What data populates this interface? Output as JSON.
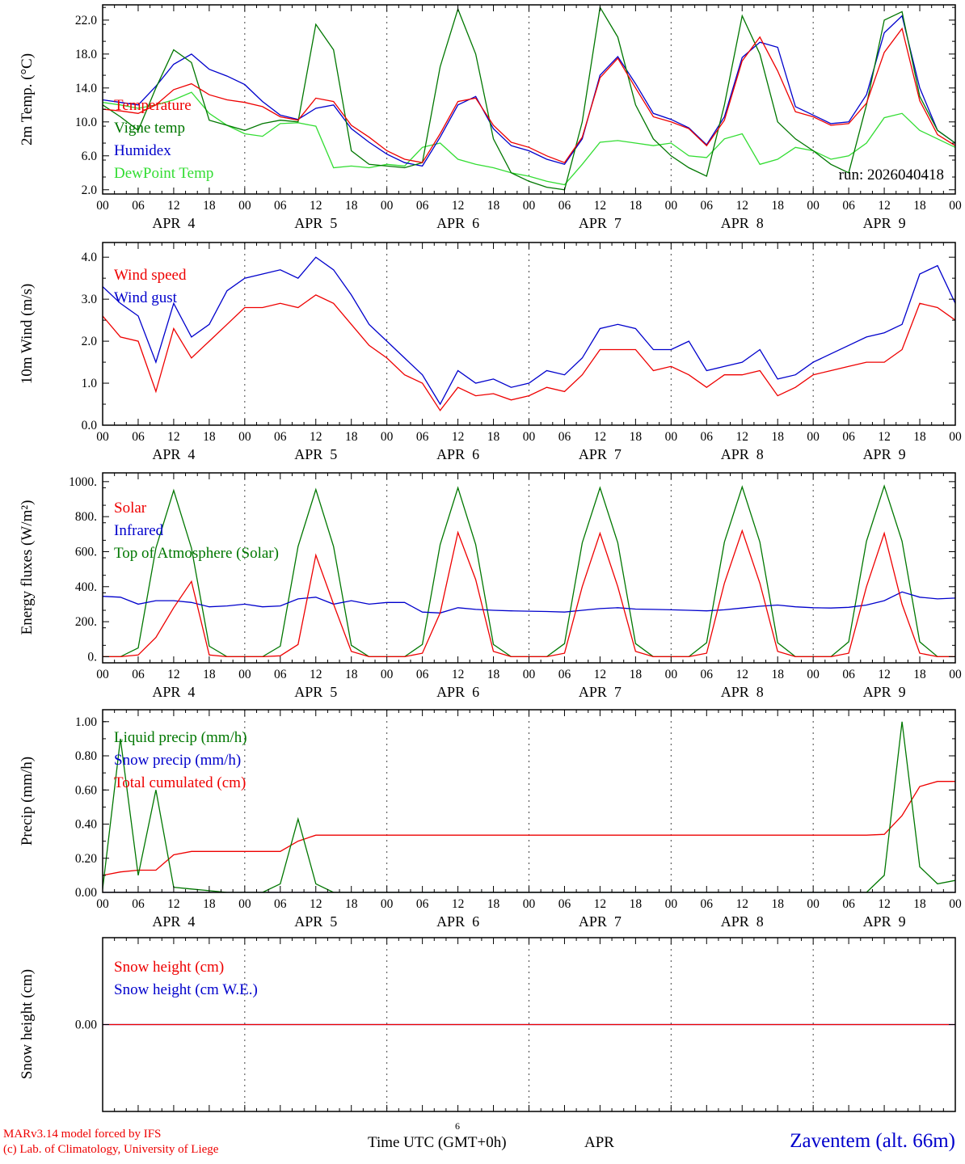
{
  "run_label": "run: 2026040418",
  "footer": {
    "left_line1": "MARv3.14 model forced by IFS",
    "left_line2": "(c) Lab. of Climatology, University of Liege",
    "center": "Time UTC (GMT+0h)",
    "center_sup": "6",
    "apr": "APR",
    "right": "Zaventem (alt. 66m)"
  },
  "colors": {
    "red": "#ee0000",
    "blue": "#0000cc",
    "dark_green": "#007700",
    "light_green": "#33dd33",
    "axis": "#000000"
  },
  "x_axis": {
    "hours_start": 0,
    "hours_end": 144,
    "major_step": 6,
    "minor_step": 2,
    "tick_label_cycle": [
      "00",
      "06",
      "12",
      "18"
    ],
    "day_labels": [
      "APR  4",
      "APR  5",
      "APR  6",
      "APR  7",
      "APR  8",
      "APR  9"
    ],
    "day_boundaries": [
      24,
      48,
      72,
      96,
      120
    ]
  },
  "chart_data": [
    {
      "type": "line",
      "ylabel": "2m Temp. (°C)",
      "ylim": [
        1.5,
        23.8
      ],
      "yticks": [
        2,
        6,
        10,
        14,
        18,
        22
      ],
      "ytick_labels": [
        "2.0",
        "6.0",
        "10.0",
        "14.0",
        "18.0",
        "22.0"
      ],
      "x_step_hours": 3,
      "series": [
        {
          "name": "Temperature",
          "color": "#ee0000",
          "values": [
            11.5,
            11.3,
            11.0,
            12.0,
            13.8,
            14.5,
            13.2,
            12.6,
            12.3,
            11.8,
            10.6,
            10.2,
            12.8,
            12.4,
            9.6,
            8.2,
            6.6,
            5.6,
            5.2,
            8.6,
            12.4,
            12.8,
            9.6,
            7.6,
            7.0,
            6.0,
            5.2,
            8.2,
            15.2,
            17.5,
            14.0,
            10.6,
            10.0,
            9.2,
            7.2,
            10.2,
            17.2,
            20.0,
            16.0,
            11.2,
            10.6,
            9.6,
            9.8,
            12.2,
            18.2,
            21.0,
            12.5,
            8.5,
            7.2
          ]
        },
        {
          "name": "Vigne temp",
          "color": "#007700",
          "values": [
            12.0,
            10.6,
            9.0,
            14.0,
            18.5,
            17.0,
            10.2,
            9.6,
            9.0,
            9.8,
            10.2,
            10.0,
            21.5,
            18.5,
            6.6,
            5.0,
            4.8,
            4.6,
            5.2,
            16.5,
            23.3,
            18.0,
            8.0,
            4.0,
            3.0,
            2.3,
            2.0,
            10.0,
            23.5,
            20.0,
            12.0,
            8.0,
            6.0,
            4.6,
            3.6,
            12.0,
            22.5,
            18.0,
            10.0,
            8.0,
            6.6,
            5.0,
            4.0,
            12.0,
            22.0,
            23.0,
            13.0,
            9.0,
            7.5
          ]
        },
        {
          "name": "Humidex",
          "color": "#0000cc",
          "values": [
            12.6,
            12.3,
            12.0,
            14.2,
            16.8,
            18.0,
            16.2,
            15.4,
            14.4,
            12.4,
            10.8,
            10.3,
            11.6,
            12.0,
            9.2,
            7.6,
            6.2,
            5.2,
            4.8,
            8.2,
            12.0,
            13.0,
            9.2,
            7.2,
            6.6,
            5.6,
            5.0,
            8.0,
            15.5,
            17.7,
            14.5,
            11.0,
            10.3,
            9.3,
            7.3,
            10.6,
            17.6,
            19.4,
            18.8,
            11.8,
            10.8,
            9.8,
            10.0,
            13.2,
            20.5,
            22.5,
            14.0,
            9.0,
            7.5
          ]
        },
        {
          "name": "DewPoint Temp",
          "color": "#33dd33",
          "values": [
            12.3,
            12.0,
            11.6,
            12.0,
            12.6,
            13.5,
            11.0,
            9.6,
            8.6,
            8.3,
            9.8,
            9.9,
            9.5,
            4.6,
            4.8,
            4.6,
            5.0,
            4.8,
            7.0,
            7.5,
            5.6,
            5.0,
            4.6,
            4.0,
            3.6,
            3.0,
            2.6,
            5.0,
            7.6,
            7.8,
            7.5,
            7.2,
            7.5,
            6.0,
            5.8,
            8.0,
            8.6,
            5.0,
            5.6,
            7.0,
            6.6,
            5.6,
            6.0,
            7.5,
            10.5,
            11.0,
            9.0,
            8.0,
            7.0
          ]
        }
      ]
    },
    {
      "type": "line",
      "ylabel": "10m Wind (m/s)",
      "ylim": [
        0,
        4.35
      ],
      "yticks": [
        0,
        1,
        2,
        3,
        4
      ],
      "ytick_labels": [
        "0.0",
        "1.0",
        "2.0",
        "3.0",
        "4.0"
      ],
      "x_step_hours": 3,
      "series": [
        {
          "name": "Wind speed",
          "color": "#ee0000",
          "values": [
            2.6,
            2.1,
            2.0,
            0.8,
            2.3,
            1.6,
            2.0,
            2.4,
            2.8,
            2.8,
            2.9,
            2.8,
            3.1,
            2.9,
            2.4,
            1.9,
            1.6,
            1.2,
            1.0,
            0.35,
            0.9,
            0.7,
            0.75,
            0.6,
            0.7,
            0.9,
            0.8,
            1.2,
            1.8,
            1.8,
            1.8,
            1.3,
            1.4,
            1.2,
            0.9,
            1.2,
            1.2,
            1.3,
            0.7,
            0.9,
            1.2,
            1.3,
            1.4,
            1.5,
            1.5,
            1.8,
            2.9,
            2.8,
            2.5
          ]
        },
        {
          "name": "Wind gust",
          "color": "#0000cc",
          "values": [
            3.3,
            2.9,
            2.6,
            1.5,
            2.9,
            2.1,
            2.4,
            3.2,
            3.5,
            3.6,
            3.7,
            3.5,
            4.0,
            3.7,
            3.1,
            2.4,
            2.0,
            1.6,
            1.2,
            0.5,
            1.3,
            1.0,
            1.1,
            0.9,
            1.0,
            1.3,
            1.2,
            1.6,
            2.3,
            2.4,
            2.3,
            1.8,
            1.8,
            2.0,
            1.3,
            1.4,
            1.5,
            1.8,
            1.1,
            1.2,
            1.5,
            1.7,
            1.9,
            2.1,
            2.2,
            2.4,
            3.6,
            3.8,
            2.9
          ]
        }
      ]
    },
    {
      "type": "line",
      "ylabel": "Energy fluxes (W/m²)",
      "ylim": [
        -35,
        1050
      ],
      "yticks": [
        0,
        200,
        400,
        600,
        800,
        1000
      ],
      "ytick_labels": [
        "0.",
        "200.",
        "400.",
        "600.",
        "800.",
        "1000."
      ],
      "x_step_hours": 3,
      "series": [
        {
          "name": "Solar",
          "color": "#ee0000",
          "values": [
            0,
            0,
            10,
            110,
            280,
            430,
            10,
            0,
            0,
            0,
            5,
            70,
            580,
            300,
            30,
            0,
            0,
            0,
            20,
            250,
            710,
            440,
            30,
            0,
            0,
            0,
            20,
            400,
            705,
            400,
            30,
            0,
            0,
            0,
            20,
            420,
            720,
            420,
            30,
            0,
            0,
            0,
            20,
            400,
            705,
            300,
            20,
            0,
            0
          ]
        },
        {
          "name": "Infrared",
          "color": "#0000cc",
          "values": [
            345,
            340,
            300,
            320,
            320,
            310,
            285,
            290,
            300,
            285,
            290,
            330,
            340,
            300,
            320,
            300,
            310,
            310,
            255,
            250,
            280,
            270,
            265,
            262,
            260,
            258,
            255,
            265,
            275,
            280,
            272,
            270,
            268,
            265,
            262,
            268,
            278,
            288,
            295,
            285,
            280,
            278,
            282,
            295,
            320,
            370,
            340,
            330,
            335
          ]
        },
        {
          "name": "Top of Atmosphere (Solar)",
          "color": "#007700",
          "values": [
            0,
            0,
            50,
            620,
            950,
            620,
            60,
            0,
            0,
            0,
            60,
            630,
            955,
            630,
            65,
            0,
            0,
            0,
            70,
            640,
            965,
            640,
            70,
            0,
            0,
            0,
            75,
            650,
            965,
            650,
            75,
            0,
            0,
            0,
            80,
            655,
            970,
            655,
            80,
            0,
            0,
            0,
            85,
            660,
            975,
            660,
            85,
            0,
            0
          ]
        }
      ]
    },
    {
      "type": "line",
      "ylabel": "Precip (mm/h)",
      "ylim": [
        0,
        1.07
      ],
      "yticks": [
        0,
        0.2,
        0.4,
        0.6,
        0.8,
        1.0
      ],
      "ytick_labels": [
        "0.00",
        "0.20",
        "0.40",
        "0.60",
        "0.80",
        "1.00"
      ],
      "x_step_hours": 3,
      "series": [
        {
          "name": "Liquid precip (mm/h)",
          "color": "#007700",
          "values": [
            0.02,
            0.9,
            0.1,
            0.6,
            0.03,
            0.02,
            0.01,
            0,
            0,
            0,
            0.05,
            0.43,
            0.05,
            0,
            0,
            0,
            0,
            0,
            0,
            0,
            0,
            0,
            0,
            0,
            0,
            0,
            0,
            0,
            0,
            0,
            0,
            0,
            0,
            0,
            0,
            0,
            0,
            0,
            0,
            0,
            0,
            0,
            0,
            0,
            0.1,
            1.0,
            0.15,
            0.05,
            0.07
          ]
        },
        {
          "name": "Snow precip (mm/h)",
          "color": "#0000cc",
          "values": [
            0,
            0,
            0,
            0,
            0,
            0,
            0,
            0,
            0,
            0,
            0,
            0,
            0,
            0,
            0,
            0,
            0,
            0,
            0,
            0,
            0,
            0,
            0,
            0,
            0,
            0,
            0,
            0,
            0,
            0,
            0,
            0,
            0,
            0,
            0,
            0,
            0,
            0,
            0,
            0,
            0,
            0,
            0,
            0,
            0,
            0,
            0,
            0,
            0
          ]
        },
        {
          "name": "Total cumulated (cm)",
          "color": "#ee0000",
          "values": [
            0.1,
            0.12,
            0.13,
            0.13,
            0.22,
            0.24,
            0.24,
            0.24,
            0.24,
            0.24,
            0.24,
            0.3,
            0.335,
            0.335,
            0.335,
            0.335,
            0.335,
            0.335,
            0.335,
            0.335,
            0.335,
            0.335,
            0.335,
            0.335,
            0.335,
            0.335,
            0.335,
            0.335,
            0.335,
            0.335,
            0.335,
            0.335,
            0.335,
            0.335,
            0.335,
            0.335,
            0.335,
            0.335,
            0.335,
            0.335,
            0.335,
            0.335,
            0.335,
            0.335,
            0.34,
            0.45,
            0.62,
            0.65,
            0.65
          ]
        }
      ]
    },
    {
      "type": "line",
      "ylabel": "Snow height (cm)",
      "ylim": [
        -1,
        1
      ],
      "yticks": [
        0
      ],
      "ytick_labels": [
        "0.00"
      ],
      "x_step_hours": 3,
      "series": [
        {
          "name": "Snow height (cm)",
          "color": "#ee0000",
          "values": [
            0,
            0,
            0,
            0,
            0,
            0,
            0,
            0,
            0,
            0,
            0,
            0,
            0,
            0,
            0,
            0,
            0,
            0,
            0,
            0,
            0,
            0,
            0,
            0,
            0,
            0,
            0,
            0,
            0,
            0,
            0,
            0,
            0,
            0,
            0,
            0,
            0,
            0,
            0,
            0,
            0,
            0,
            0,
            0,
            0,
            0,
            0,
            0,
            0
          ]
        },
        {
          "name": "Snow height (cm W.E.)",
          "color": "#0000cc",
          "values": [
            0,
            0,
            0,
            0,
            0,
            0,
            0,
            0,
            0,
            0,
            0,
            0,
            0,
            0,
            0,
            0,
            0,
            0,
            0,
            0,
            0,
            0,
            0,
            0,
            0,
            0,
            0,
            0,
            0,
            0,
            0,
            0,
            0,
            0,
            0,
            0,
            0,
            0,
            0,
            0,
            0,
            0,
            0,
            0,
            0,
            0,
            0,
            0,
            0
          ]
        }
      ]
    }
  ]
}
